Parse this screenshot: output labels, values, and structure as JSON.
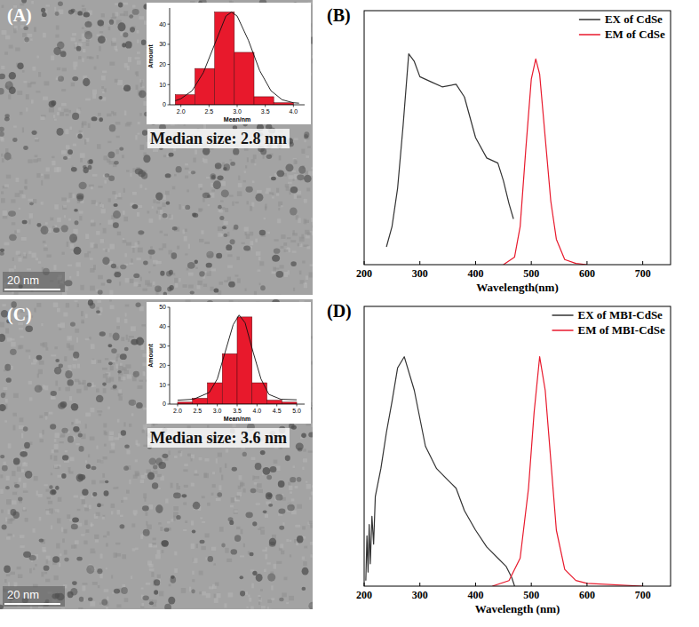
{
  "chart_data": [
    {
      "type": "histogram",
      "panel_label": "(A)",
      "annotations": [
        "Median size: 2.8 nm",
        "20 nm"
      ],
      "x_label": "Mean/nm",
      "y_label": "Amount",
      "bins": [
        1.9,
        2.25,
        2.6,
        2.95,
        3.3,
        3.65,
        4.0
      ],
      "values": [
        5,
        18,
        46,
        26,
        4,
        1
      ],
      "color": "#e8192c",
      "xlim": [
        1.8,
        4.2
      ],
      "xticks": [
        {
          "value": 2,
          "label": "2.0"
        },
        {
          "value": 2.5,
          "label": "2.5"
        },
        {
          "value": 3,
          "label": "3.0"
        },
        {
          "value": 3.5,
          "label": "3.5"
        },
        {
          "value": 4,
          "label": "4.0"
        }
      ],
      "ylim": [
        0,
        48
      ],
      "yticks": [
        0,
        10,
        20,
        30,
        40
      ],
      "fit_curve": {
        "x": [
          1.9,
          2.0,
          2.2,
          2.4,
          2.6,
          2.8,
          2.9,
          3.0,
          3.2,
          3.4,
          3.6,
          3.8,
          4.0,
          4.1
        ],
        "values": [
          2,
          3,
          7,
          16,
          30,
          44,
          46,
          44,
          32,
          17,
          7,
          2.5,
          1,
          0.8
        ]
      }
    },
    {
      "type": "line",
      "panel_label": "(B)",
      "x_label": "Wavelength(nm)",
      "xlim": [
        200,
        750
      ],
      "xticks": [
        200,
        300,
        400,
        500,
        600,
        700
      ],
      "ylim": [
        0,
        1
      ],
      "tick_labels": "x",
      "legend": "top-right",
      "series": [
        {
          "name": "EX of CdSe",
          "color": "#333333",
          "x": [
            240,
            250,
            260,
            270,
            280,
            290,
            300,
            320,
            340,
            365,
            380,
            400,
            420,
            440,
            450,
            460,
            468
          ],
          "values": [
            0.07,
            0.15,
            0.3,
            0.55,
            0.83,
            0.8,
            0.74,
            0.72,
            0.7,
            0.71,
            0.66,
            0.5,
            0.42,
            0.4,
            0.33,
            0.24,
            0.18
          ]
        },
        {
          "name": "EM of CdSe",
          "color": "#e8192c",
          "x": [
            450,
            470,
            480,
            490,
            500,
            508,
            515,
            525,
            535,
            545,
            560,
            580,
            600
          ],
          "values": [
            0,
            0.03,
            0.15,
            0.45,
            0.73,
            0.81,
            0.75,
            0.5,
            0.25,
            0.1,
            0.02,
            0.005,
            0
          ]
        }
      ]
    },
    {
      "type": "histogram",
      "panel_label": "(C)",
      "annotations": [
        "Median size: 3.6 nm",
        "20 nm"
      ],
      "x_label": "Mean/nm",
      "y_label": "Amount",
      "bins": [
        2.0,
        2.375,
        2.75,
        3.125,
        3.5,
        3.875,
        4.25,
        4.625,
        5.0
      ],
      "values": [
        1,
        3,
        11,
        26,
        45,
        11,
        2,
        1
      ],
      "color": "#e8192c",
      "xlim": [
        1.8,
        5.2
      ],
      "xticks": [
        {
          "value": 2,
          "label": "2.0"
        },
        {
          "value": 2.5,
          "label": "2.5"
        },
        {
          "value": 3,
          "label": "3.0"
        },
        {
          "value": 3.5,
          "label": "3.5"
        },
        {
          "value": 4,
          "label": "4.0"
        },
        {
          "value": 4.5,
          "label": "4.5"
        },
        {
          "value": 5,
          "label": "5.0"
        }
      ],
      "ylim": [
        0,
        50
      ],
      "yticks": [
        0,
        10,
        20,
        30,
        40,
        50
      ],
      "fit_curve": {
        "x": [
          2.0,
          2.4,
          2.8,
          3.0,
          3.2,
          3.4,
          3.55,
          3.7,
          3.9,
          4.1,
          4.3,
          4.6,
          5.0
        ],
        "values": [
          2,
          2.5,
          6,
          13,
          27,
          41,
          46,
          42,
          27,
          13,
          5,
          2.5,
          2.2
        ]
      }
    },
    {
      "type": "line",
      "panel_label": "(D)",
      "x_label": "Wavelength (nm)",
      "xlim": [
        200,
        750
      ],
      "xticks": [
        200,
        300,
        400,
        500,
        600,
        700
      ],
      "ylim": [
        0,
        1
      ],
      "tick_labels": "x",
      "legend": "top-right",
      "series": [
        {
          "name": "EX of MBI-CdSe",
          "color": "#333333",
          "x": [
            203,
            205,
            207,
            209,
            211,
            214,
            217,
            220,
            230,
            240,
            250,
            260,
            272,
            290,
            310,
            330,
            350,
            365,
            380,
            400,
            420,
            440,
            455,
            465,
            470
          ],
          "values": [
            0.02,
            0.18,
            0.05,
            0.22,
            0.08,
            0.25,
            0.15,
            0.32,
            0.42,
            0.55,
            0.66,
            0.78,
            0.82,
            0.7,
            0.5,
            0.42,
            0.38,
            0.35,
            0.27,
            0.2,
            0.14,
            0.1,
            0.07,
            0.03,
            0
          ]
        },
        {
          "name": "EM of MBI-CdSe",
          "color": "#e8192c",
          "x": [
            430,
            460,
            480,
            495,
            505,
            515,
            525,
            535,
            545,
            560,
            580,
            600,
            700
          ],
          "values": [
            0,
            0.02,
            0.1,
            0.35,
            0.62,
            0.82,
            0.7,
            0.45,
            0.2,
            0.06,
            0.02,
            0.01,
            0
          ]
        }
      ]
    }
  ]
}
